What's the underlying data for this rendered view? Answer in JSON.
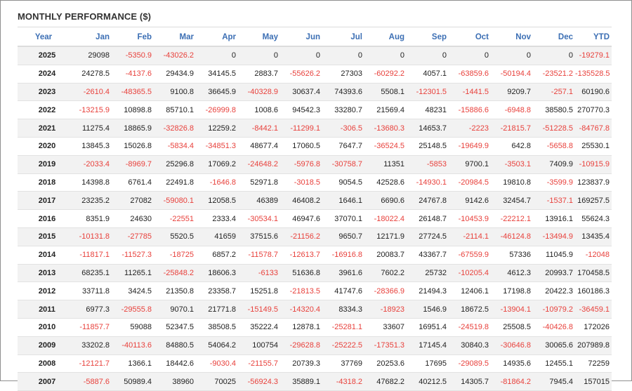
{
  "title": "MONTHLY PERFORMANCE ($)",
  "colors": {
    "header_text": "#3c6fb4",
    "negative": "#e8413c",
    "row_alt": "#f2f2f2"
  },
  "headers": [
    "Year",
    "Jan",
    "Feb",
    "Mar",
    "Apr",
    "May",
    "Jun",
    "Jul",
    "Aug",
    "Sep",
    "Oct",
    "Nov",
    "Dec",
    "YTD"
  ],
  "rows": [
    [
      "2025",
      "29098",
      "-5350.9",
      "-43026.2",
      "0",
      "0",
      "0",
      "0",
      "0",
      "0",
      "0",
      "0",
      "0",
      "-19279.1"
    ],
    [
      "2024",
      "24278.5",
      "-4137.6",
      "29434.9",
      "34145.5",
      "2883.7",
      "-55626.2",
      "27303",
      "-60292.2",
      "4057.1",
      "-63859.6",
      "-50194.4",
      "-23521.2",
      "-135528.5"
    ],
    [
      "2023",
      "-2610.4",
      "-48365.5",
      "9100.8",
      "36645.9",
      "-40328.9",
      "30637.4",
      "74393.6",
      "5508.1",
      "-12301.5",
      "-1441.5",
      "9209.7",
      "-257.1",
      "60190.6"
    ],
    [
      "2022",
      "-13215.9",
      "10898.8",
      "85710.1",
      "-26999.8",
      "1008.6",
      "94542.3",
      "33280.7",
      "21569.4",
      "48231",
      "-15886.6",
      "-6948.8",
      "38580.5",
      "270770.3"
    ],
    [
      "2021",
      "11275.4",
      "18865.9",
      "-32826.8",
      "12259.2",
      "-8442.1",
      "-11299.1",
      "-306.5",
      "-13680.3",
      "14653.7",
      "-2223",
      "-21815.7",
      "-51228.5",
      "-84767.8"
    ],
    [
      "2020",
      "13845.3",
      "15026.8",
      "-5834.4",
      "-34851.3",
      "48677.4",
      "17060.5",
      "7647.7",
      "-36524.5",
      "25148.5",
      "-19649.9",
      "642.8",
      "-5658.8",
      "25530.1"
    ],
    [
      "2019",
      "-2033.4",
      "-8969.7",
      "25296.8",
      "17069.2",
      "-24648.2",
      "-5976.8",
      "-30758.7",
      "11351",
      "-5853",
      "9700.1",
      "-3503.1",
      "7409.9",
      "-10915.9"
    ],
    [
      "2018",
      "14398.8",
      "6761.4",
      "22491.8",
      "-1646.8",
      "52971.8",
      "-3018.5",
      "9054.5",
      "42528.6",
      "-14930.1",
      "-20984.5",
      "19810.8",
      "-3599.9",
      "123837.9"
    ],
    [
      "2017",
      "23235.2",
      "27082",
      "-59080.1",
      "12058.5",
      "46389",
      "46408.2",
      "1646.1",
      "6690.6",
      "24767.8",
      "9142.6",
      "32454.7",
      "-1537.1",
      "169257.5"
    ],
    [
      "2016",
      "8351.9",
      "24630",
      "-22551",
      "2333.4",
      "-30534.1",
      "46947.6",
      "37070.1",
      "-18022.4",
      "26148.7",
      "-10453.9",
      "-22212.1",
      "13916.1",
      "55624.3"
    ],
    [
      "2015",
      "-10131.8",
      "-27785",
      "5520.5",
      "41659",
      "37515.6",
      "-21156.2",
      "9650.7",
      "12171.9",
      "27724.5",
      "-2114.1",
      "-46124.8",
      "-13494.9",
      "13435.4"
    ],
    [
      "2014",
      "-11817.1",
      "-11527.3",
      "-18725",
      "6857.2",
      "-11578.7",
      "-12613.7",
      "-16916.8",
      "20083.7",
      "43367.7",
      "-67559.9",
      "57336",
      "11045.9",
      "-12048"
    ],
    [
      "2013",
      "68235.1",
      "11265.1",
      "-25848.2",
      "18606.3",
      "-6133",
      "51636.8",
      "3961.6",
      "7602.2",
      "25732",
      "-10205.4",
      "4612.3",
      "20993.7",
      "170458.5"
    ],
    [
      "2012",
      "33711.8",
      "3424.5",
      "21350.8",
      "23358.7",
      "15251.8",
      "-21813.5",
      "41747.6",
      "-28366.9",
      "21494.3",
      "12406.1",
      "17198.8",
      "20422.3",
      "160186.3"
    ],
    [
      "2011",
      "6977.3",
      "-29555.8",
      "9070.1",
      "21771.8",
      "-15149.5",
      "-14320.4",
      "8334.3",
      "-18923",
      "1546.9",
      "18672.5",
      "-13904.1",
      "-10979.2",
      "-36459.1"
    ],
    [
      "2010",
      "-11857.7",
      "59088",
      "52347.5",
      "38508.5",
      "35222.4",
      "12878.1",
      "-25281.1",
      "33607",
      "16951.4",
      "-24519.8",
      "25508.5",
      "-40426.8",
      "172026"
    ],
    [
      "2009",
      "33202.8",
      "-40113.6",
      "84880.5",
      "54064.2",
      "100754",
      "-29628.8",
      "-25222.5",
      "-17351.3",
      "17145.4",
      "30840.3",
      "-30646.8",
      "30065.6",
      "207989.8"
    ],
    [
      "2008",
      "-12121.7",
      "1366.1",
      "18442.6",
      "-9030.4",
      "-21155.7",
      "20739.3",
      "37769",
      "20253.6",
      "17695",
      "-29089.5",
      "14935.6",
      "12455.1",
      "72259"
    ],
    [
      "2007",
      "-5887.6",
      "50989.4",
      "38960",
      "70025",
      "-56924.3",
      "35889.1",
      "-4318.2",
      "47682.2",
      "40212.5",
      "14305.7",
      "-81864.2",
      "7945.4",
      "157015"
    ]
  ]
}
